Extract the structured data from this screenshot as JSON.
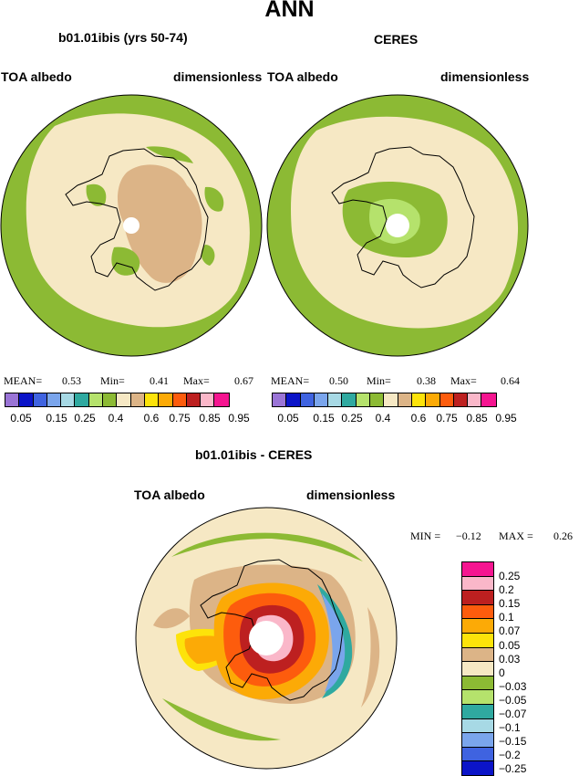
{
  "title": "ANN",
  "panels": [
    {
      "case": "b01.01ibis (yrs 50-74)",
      "variable": "TOA albedo",
      "units": "dimensionless",
      "stats": {
        "mean_label": "MEAN=",
        "mean": "0.53",
        "min_label": "Min=",
        "min": "0.41",
        "max_label": "Max=",
        "max": "0.67"
      }
    },
    {
      "case": "CERES",
      "variable": "TOA albedo",
      "units": "dimensionless",
      "stats": {
        "mean_label": "MEAN=",
        "mean": "0.50",
        "min_label": "Min=",
        "min": "0.38",
        "max_label": "Max=",
        "max": "0.64"
      }
    }
  ],
  "abs_colorbar": {
    "colors": [
      "#9a74d6",
      "#0b14c8",
      "#3f63e0",
      "#7aa5ec",
      "#a7d9e5",
      "#2fa9a0",
      "#b5e26c",
      "#8cba34",
      "#f6e8c4",
      "#dcb487",
      "#fde30a",
      "#fcaa06",
      "#fd5c0d",
      "#bd2020",
      "#fab7c9",
      "#f51590"
    ],
    "labels": [
      "0.05",
      "0.15",
      "0.25",
      "0.4",
      "0.6",
      "0.75",
      "0.85",
      "0.95"
    ]
  },
  "diff_panel": {
    "title": "b01.01ibis - CERES",
    "variable": "TOA albedo",
    "units": "dimensionless",
    "min_label": "MIN =",
    "min": "−0.12",
    "max_label": "MAX =",
    "max": "0.26"
  },
  "diff_colorbar": {
    "colors_top_to_bottom": [
      "#f51590",
      "#fab7c9",
      "#bd2020",
      "#fd5c0d",
      "#fcaa06",
      "#fde30a",
      "#dcb487",
      "#f6e8c4",
      "#8cba34",
      "#b5e26c",
      "#2fa9a0",
      "#a7d9e5",
      "#7aa5ec",
      "#3f63e0",
      "#0b14c8",
      "#9a74d6"
    ],
    "labels": [
      "0.25",
      "0.2",
      "0.15",
      "0.1",
      "0.07",
      "0.05",
      "0.03",
      "0",
      "−0.03",
      "−0.05",
      "−0.07",
      "−0.1",
      "−0.15",
      "−0.2",
      "−0.25"
    ]
  }
}
